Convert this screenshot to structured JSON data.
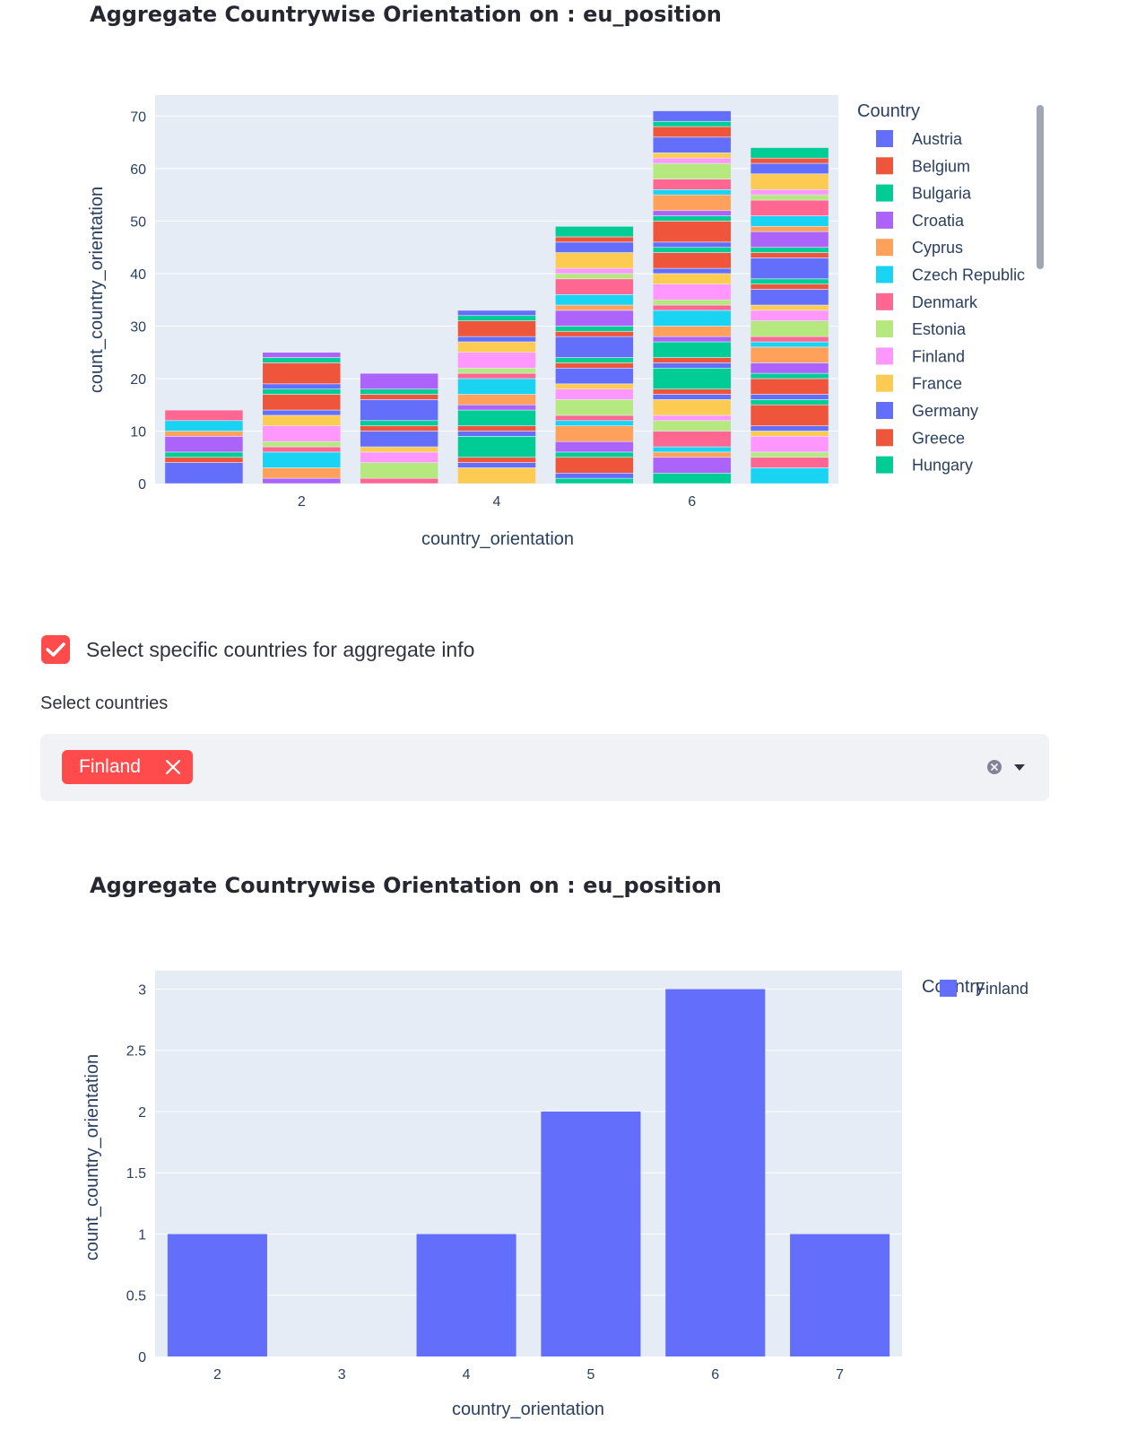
{
  "chart1": {
    "title": "Aggregate Countrywise Orientation on : eu_position",
    "chart_data": {
      "type": "bar",
      "barmode": "stack",
      "xlabel": "country_orientation",
      "ylabel": "count_country_orientation",
      "x_ticks": [
        "2",
        "4",
        "6"
      ],
      "y_ticks": [
        "0",
        "10",
        "20",
        "30",
        "40",
        "50",
        "60",
        "70"
      ],
      "ylim": [
        0,
        74
      ],
      "categories": [
        1,
        2,
        3,
        4,
        5,
        6,
        7
      ],
      "totals": [
        14,
        25,
        21,
        33,
        49,
        71,
        64
      ],
      "legend_title": "Country",
      "legend_position": "right",
      "legend": [
        "Austria",
        "Belgium",
        "Bulgaria",
        "Croatia",
        "Cyprus",
        "Czech Republic",
        "Denmark",
        "Estonia",
        "Finland",
        "France",
        "Germany",
        "Greece",
        "Hungary"
      ],
      "series_colors": [
        "#636efa",
        "#ef553b",
        "#00cc96",
        "#ab63fa",
        "#ffa15a",
        "#19d3f3",
        "#ff6692",
        "#b6e880",
        "#ff97ff",
        "#fecb52",
        "#636efa",
        "#ef553b",
        "#00cc96"
      ]
    }
  },
  "checkbox": {
    "label": "Select specific countries for aggregate info",
    "checked": true
  },
  "select": {
    "label": "Select countries",
    "chip": "Finland"
  },
  "chart2": {
    "title": "Aggregate Countrywise Orientation on : eu_position",
    "chart_data": {
      "type": "bar",
      "xlabel": "country_orientation",
      "ylabel": "count_country_orientation",
      "categories": [
        "2",
        "3",
        "4",
        "5",
        "6",
        "7"
      ],
      "series": [
        {
          "name": "Finland",
          "values": [
            1,
            0,
            1,
            2,
            3,
            1
          ],
          "color": "#636efa"
        }
      ],
      "y_ticks": [
        "0",
        "0.5",
        "1",
        "1.5",
        "2",
        "2.5",
        "3"
      ],
      "ylim": [
        0,
        3.15
      ],
      "legend_title": "Country",
      "legend_position": "right"
    }
  }
}
